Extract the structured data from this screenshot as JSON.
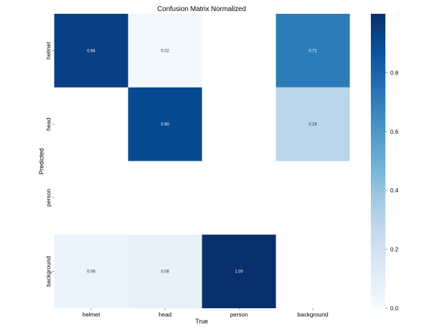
{
  "chart_data": {
    "type": "heatmap",
    "title": "Confusion Matrix Normalized",
    "xlabel": "True",
    "ylabel": "Predicted",
    "x_categories": [
      "helmet",
      "head",
      "person",
      "background"
    ],
    "y_categories": [
      "helmet",
      "head",
      "person",
      "background"
    ],
    "values": [
      [
        0.94,
        0.02,
        null,
        0.71
      ],
      [
        null,
        0.9,
        null,
        0.29
      ],
      [
        null,
        null,
        null,
        null
      ],
      [
        0.06,
        0.08,
        1.0,
        null
      ]
    ],
    "value_labels": [
      [
        "0.94",
        "0.02",
        "",
        "0.71"
      ],
      [
        "",
        "0.90",
        "",
        "0.29"
      ],
      [
        "",
        "",
        "",
        ""
      ],
      [
        "0.06",
        "0.08",
        "1.00",
        ""
      ]
    ],
    "colormap": "Blues",
    "vmin": 0.0,
    "vmax": 1.0,
    "colorbar": {
      "ticks": [
        0.0,
        0.2,
        0.4,
        0.6,
        0.8
      ],
      "tick_labels": [
        "0.0",
        "0.2",
        "0.4",
        "0.6",
        "0.8"
      ]
    },
    "grid": false
  }
}
